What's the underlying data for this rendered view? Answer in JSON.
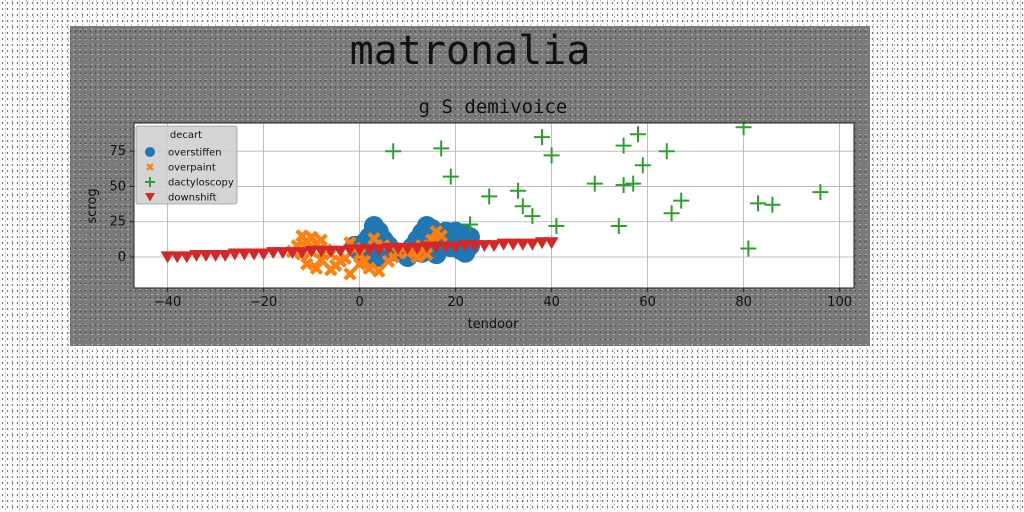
{
  "figure": {
    "suptitle": "matronalia"
  },
  "chart_data": {
    "type": "scatter",
    "title": "g S demivoice",
    "xlabel": "tendoor",
    "ylabel": "scrog",
    "xlim": [
      -47,
      103
    ],
    "ylim": [
      -22,
      95
    ],
    "xticks": [
      -40,
      -20,
      0,
      20,
      40,
      60,
      80,
      100
    ],
    "xtick_labels": [
      "−40",
      "−20",
      "0",
      "20",
      "40",
      "60",
      "80",
      "100"
    ],
    "yticks": [
      0,
      25,
      50,
      75
    ],
    "ytick_labels": [
      "0",
      "25",
      "50",
      "75"
    ],
    "grid": true,
    "legend": {
      "title": "decart",
      "placement": "upper-left"
    },
    "series": [
      {
        "name": "overstiffen",
        "marker": "circle",
        "color": "#1f77b4",
        "points": [
          [
            3,
            22
          ],
          [
            4,
            18
          ],
          [
            2,
            14
          ],
          [
            5,
            12
          ],
          [
            1,
            10
          ],
          [
            6,
            8
          ],
          [
            3,
            6
          ],
          [
            0,
            4
          ],
          [
            2,
            2
          ],
          [
            7,
            4
          ],
          [
            4,
            0
          ],
          [
            -1,
            8
          ],
          [
            14,
            22
          ],
          [
            15,
            20
          ],
          [
            13,
            17
          ],
          [
            16,
            15
          ],
          [
            12,
            12
          ],
          [
            17,
            12
          ],
          [
            14,
            9
          ],
          [
            11,
            7
          ],
          [
            15,
            6
          ],
          [
            13,
            3
          ],
          [
            16,
            2
          ],
          [
            10,
            0
          ],
          [
            18,
            18
          ],
          [
            19,
            16
          ],
          [
            20,
            12
          ],
          [
            21,
            10
          ],
          [
            22,
            16
          ],
          [
            23,
            14
          ],
          [
            19,
            7
          ],
          [
            21,
            5
          ],
          [
            22,
            3
          ],
          [
            20,
            18
          ],
          [
            18,
            9
          ],
          [
            23,
            8
          ]
        ]
      },
      {
        "name": "overpaint",
        "marker": "x",
        "color": "#ff7f0e",
        "points": [
          [
            -12,
            15
          ],
          [
            -10,
            14
          ],
          [
            -11,
            11
          ],
          [
            -9,
            9
          ],
          [
            -8,
            12
          ],
          [
            -13,
            8
          ],
          [
            -7,
            5
          ],
          [
            -10,
            4
          ],
          [
            -6,
            2
          ],
          [
            -12,
            2
          ],
          [
            -8,
            -2
          ],
          [
            -5,
            -6
          ],
          [
            -9,
            -8
          ],
          [
            -4,
            -3
          ],
          [
            -2,
            10
          ],
          [
            -1,
            6
          ],
          [
            0,
            2
          ],
          [
            1,
            -3
          ],
          [
            2,
            -8
          ],
          [
            4,
            -10
          ],
          [
            3,
            13
          ],
          [
            5,
            8
          ],
          [
            6,
            -3
          ],
          [
            7,
            0
          ],
          [
            8,
            3
          ],
          [
            -3,
            -1
          ],
          [
            -11,
            -5
          ],
          [
            -14,
            4
          ],
          [
            11,
            5
          ],
          [
            13,
            8
          ],
          [
            15,
            12
          ],
          [
            16,
            18
          ],
          [
            17,
            15
          ],
          [
            10,
            3
          ],
          [
            12,
            0
          ],
          [
            9,
            6
          ],
          [
            14,
            2
          ],
          [
            -6,
            -9
          ],
          [
            -2,
            -12
          ],
          [
            0,
            -5
          ]
        ]
      },
      {
        "name": "dactyloscopy",
        "marker": "plus",
        "color": "#2ca02c",
        "points": [
          [
            7,
            75
          ],
          [
            17,
            77
          ],
          [
            19,
            57
          ],
          [
            23,
            23
          ],
          [
            27,
            43
          ],
          [
            33,
            47
          ],
          [
            34,
            36
          ],
          [
            36,
            29
          ],
          [
            38,
            85
          ],
          [
            40,
            72
          ],
          [
            41,
            22
          ],
          [
            49,
            52
          ],
          [
            54,
            22
          ],
          [
            55,
            51
          ],
          [
            55,
            79
          ],
          [
            57,
            52
          ],
          [
            58,
            87
          ],
          [
            59,
            65
          ],
          [
            64,
            75
          ],
          [
            65,
            31
          ],
          [
            67,
            40
          ],
          [
            80,
            92
          ],
          [
            81,
            6
          ],
          [
            83,
            38
          ],
          [
            86,
            37
          ],
          [
            96,
            46
          ]
        ]
      },
      {
        "name": "downshift",
        "marker": "triangle-down",
        "color": "#d62728",
        "points": [
          [
            -40,
            0
          ],
          [
            -38,
            0
          ],
          [
            -36,
            0
          ],
          [
            -34,
            1
          ],
          [
            -32,
            1
          ],
          [
            -30,
            1
          ],
          [
            -28,
            1
          ],
          [
            -26,
            2
          ],
          [
            -24,
            2
          ],
          [
            -22,
            2
          ],
          [
            -20,
            2
          ],
          [
            -18,
            3
          ],
          [
            -16,
            3
          ],
          [
            -14,
            3
          ],
          [
            -12,
            3
          ],
          [
            -10,
            4
          ],
          [
            -8,
            4
          ],
          [
            -6,
            4
          ],
          [
            -4,
            4
          ],
          [
            -2,
            5
          ],
          [
            0,
            5
          ],
          [
            2,
            5
          ],
          [
            4,
            5
          ],
          [
            6,
            6
          ],
          [
            8,
            6
          ],
          [
            10,
            6
          ],
          [
            12,
            6
          ],
          [
            14,
            7
          ],
          [
            16,
            7
          ],
          [
            18,
            7
          ],
          [
            20,
            7
          ],
          [
            22,
            8
          ],
          [
            24,
            8
          ],
          [
            26,
            8
          ],
          [
            28,
            8
          ],
          [
            30,
            9
          ],
          [
            32,
            9
          ],
          [
            34,
            9
          ],
          [
            36,
            9
          ],
          [
            38,
            10
          ],
          [
            40,
            10
          ]
        ]
      }
    ]
  }
}
